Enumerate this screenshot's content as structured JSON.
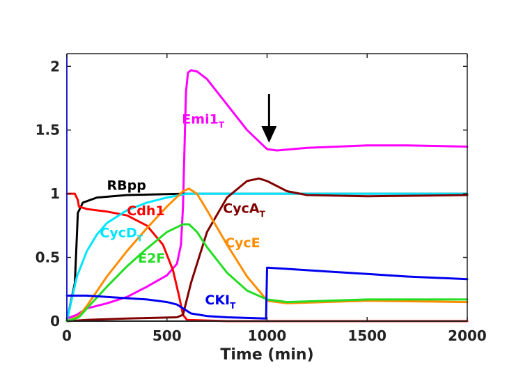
{
  "chart_data": {
    "type": "line",
    "title": "",
    "xlabel": "Time (min)",
    "ylabel": "",
    "xlim": [
      0,
      2000
    ],
    "ylim": [
      0,
      2.1
    ],
    "x_ticks": [
      "0",
      "500",
      "1000",
      "1500",
      "2000"
    ],
    "y_ticks": [
      "0",
      "0.5",
      "1",
      "1.5",
      "2"
    ],
    "grid": false,
    "legend": "none",
    "annotation": {
      "type": "arrow",
      "points_to": [
        1010,
        1.4
      ]
    },
    "series": [
      {
        "key": "emi1",
        "name": "Emi1",
        "name_sub": "T",
        "color": "#ff00ff",
        "label_pos": [
          575,
          1.55
        ],
        "points": [
          [
            0,
            0.02
          ],
          [
            50,
            0.05
          ],
          [
            100,
            0.1
          ],
          [
            200,
            0.14
          ],
          [
            300,
            0.19
          ],
          [
            400,
            0.27
          ],
          [
            500,
            0.36
          ],
          [
            550,
            0.45
          ],
          [
            570,
            0.6
          ],
          [
            580,
            0.9
          ],
          [
            590,
            1.5
          ],
          [
            595,
            1.8
          ],
          [
            605,
            1.95
          ],
          [
            620,
            1.97
          ],
          [
            650,
            1.96
          ],
          [
            700,
            1.9
          ],
          [
            800,
            1.7
          ],
          [
            900,
            1.5
          ],
          [
            1000,
            1.35
          ],
          [
            1050,
            1.34
          ],
          [
            1200,
            1.36
          ],
          [
            1500,
            1.38
          ],
          [
            1700,
            1.38
          ],
          [
            2000,
            1.37
          ]
        ]
      },
      {
        "key": "rbpp",
        "name": "RBpp",
        "name_sub": "",
        "color": "#000000",
        "label_pos": [
          200,
          1.03
        ],
        "points": [
          [
            0,
            0.0
          ],
          [
            40,
            0.3
          ],
          [
            55,
            0.85
          ],
          [
            80,
            0.93
          ],
          [
            150,
            0.97
          ],
          [
            300,
            0.99
          ],
          [
            600,
            1.0
          ],
          [
            2000,
            1.0
          ]
        ]
      },
      {
        "key": "cdh1",
        "name": "Cdh1",
        "name_sub": "",
        "color": "#ff0000",
        "label_pos": [
          300,
          0.83
        ],
        "points": [
          [
            0,
            1.0
          ],
          [
            40,
            1.0
          ],
          [
            55,
            0.95
          ],
          [
            60,
            0.9
          ],
          [
            100,
            0.88
          ],
          [
            200,
            0.86
          ],
          [
            300,
            0.83
          ],
          [
            400,
            0.75
          ],
          [
            480,
            0.6
          ],
          [
            530,
            0.4
          ],
          [
            560,
            0.2
          ],
          [
            580,
            0.05
          ],
          [
            600,
            0.01
          ],
          [
            800,
            0.0
          ],
          [
            2000,
            0.0
          ]
        ]
      },
      {
        "key": "cycd",
        "name": "CycD",
        "name_sub": "T",
        "color": "#00e5ff",
        "label_pos": [
          165,
          0.66
        ],
        "points": [
          [
            0,
            0.0
          ],
          [
            50,
            0.35
          ],
          [
            100,
            0.55
          ],
          [
            150,
            0.68
          ],
          [
            200,
            0.77
          ],
          [
            300,
            0.87
          ],
          [
            400,
            0.93
          ],
          [
            500,
            0.97
          ],
          [
            600,
            1.0
          ],
          [
            800,
            1.0
          ],
          [
            2000,
            1.0
          ]
        ]
      },
      {
        "key": "cyca",
        "name": "CycA",
        "name_sub": "T",
        "color": "#800000",
        "label_pos": [
          780,
          0.85
        ],
        "points": [
          [
            0,
            0.0
          ],
          [
            100,
            0.01
          ],
          [
            300,
            0.02
          ],
          [
            550,
            0.03
          ],
          [
            580,
            0.05
          ],
          [
            620,
            0.3
          ],
          [
            700,
            0.7
          ],
          [
            800,
            0.97
          ],
          [
            900,
            1.1
          ],
          [
            960,
            1.12
          ],
          [
            1000,
            1.1
          ],
          [
            1100,
            1.02
          ],
          [
            1200,
            0.99
          ],
          [
            1500,
            0.98
          ],
          [
            2000,
            0.99
          ]
        ]
      },
      {
        "key": "cyce",
        "name": "CycE",
        "name_sub": "",
        "color": "#ff8c00",
        "label_pos": [
          790,
          0.58
        ],
        "points": [
          [
            0,
            0.0
          ],
          [
            60,
            0.04
          ],
          [
            100,
            0.12
          ],
          [
            200,
            0.35
          ],
          [
            300,
            0.55
          ],
          [
            400,
            0.73
          ],
          [
            500,
            0.9
          ],
          [
            580,
            1.02
          ],
          [
            610,
            1.04
          ],
          [
            650,
            1.0
          ],
          [
            700,
            0.87
          ],
          [
            800,
            0.6
          ],
          [
            900,
            0.35
          ],
          [
            980,
            0.2
          ],
          [
            1000,
            0.16
          ],
          [
            1100,
            0.14
          ],
          [
            1500,
            0.16
          ],
          [
            2000,
            0.15
          ]
        ]
      },
      {
        "key": "e2f",
        "name": "E2F",
        "name_sub": "",
        "color": "#22dd22",
        "label_pos": [
          355,
          0.46
        ],
        "points": [
          [
            0,
            0.0
          ],
          [
            60,
            0.03
          ],
          [
            100,
            0.1
          ],
          [
            200,
            0.27
          ],
          [
            300,
            0.43
          ],
          [
            400,
            0.57
          ],
          [
            500,
            0.7
          ],
          [
            580,
            0.76
          ],
          [
            610,
            0.76
          ],
          [
            650,
            0.7
          ],
          [
            700,
            0.58
          ],
          [
            800,
            0.38
          ],
          [
            900,
            0.24
          ],
          [
            1000,
            0.17
          ],
          [
            1100,
            0.15
          ],
          [
            1500,
            0.17
          ],
          [
            2000,
            0.17
          ]
        ]
      },
      {
        "key": "cki",
        "name": "CKI",
        "name_sub": "T",
        "color": "#0000ee",
        "label_pos": [
          690,
          0.13
        ],
        "points": [
          [
            0,
            0.2
          ],
          [
            100,
            0.2
          ],
          [
            200,
            0.19
          ],
          [
            300,
            0.18
          ],
          [
            400,
            0.17
          ],
          [
            500,
            0.15
          ],
          [
            550,
            0.13
          ],
          [
            580,
            0.1
          ],
          [
            620,
            0.06
          ],
          [
            700,
            0.04
          ],
          [
            800,
            0.03
          ],
          [
            900,
            0.025
          ],
          [
            995,
            0.02
          ],
          [
            1000,
            0.42
          ],
          [
            1100,
            0.41
          ],
          [
            1300,
            0.39
          ],
          [
            1500,
            0.37
          ],
          [
            1700,
            0.35
          ],
          [
            2000,
            0.33
          ]
        ]
      }
    ]
  }
}
